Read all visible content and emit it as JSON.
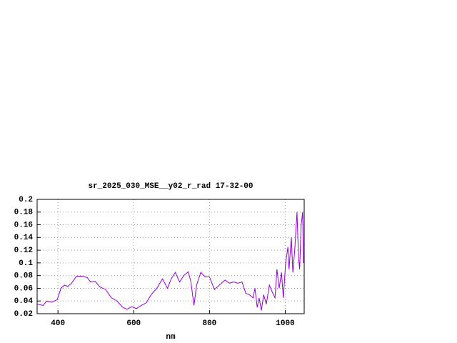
{
  "chart_data": {
    "type": "line",
    "title": "sr_2025_030_MSE__y02_r_rad 17-32-00",
    "x_label": "nm",
    "x": [
      345,
      361,
      370,
      383,
      398,
      408,
      417,
      426,
      436,
      449,
      464,
      477,
      486,
      498,
      511,
      526,
      541,
      556,
      571,
      582,
      595,
      607,
      620,
      633,
      646,
      661,
      676,
      689,
      699,
      710,
      721,
      732,
      744,
      751,
      759,
      766,
      777,
      789,
      800,
      813,
      826,
      841,
      853,
      864,
      875,
      886,
      896,
      905,
      915,
      920,
      926,
      931,
      937,
      943,
      950,
      958,
      965,
      973,
      978,
      984,
      990,
      995,
      1001,
      1007,
      1010,
      1016,
      1020,
      1025,
      1031,
      1035,
      1038,
      1042,
      1046,
      1048
    ],
    "series": [
      {
        "color": "#9400d3",
        "values": [
          0.035,
          0.033,
          0.04,
          0.038,
          0.042,
          0.06,
          0.065,
          0.063,
          0.068,
          0.079,
          0.079,
          0.077,
          0.07,
          0.071,
          0.062,
          0.058,
          0.045,
          0.04,
          0.03,
          0.027,
          0.031,
          0.028,
          0.033,
          0.037,
          0.05,
          0.06,
          0.075,
          0.06,
          0.075,
          0.085,
          0.07,
          0.08,
          0.086,
          0.07,
          0.033,
          0.065,
          0.085,
          0.078,
          0.078,
          0.058,
          0.065,
          0.073,
          0.068,
          0.07,
          0.068,
          0.07,
          0.052,
          0.05,
          0.045,
          0.06,
          0.03,
          0.045,
          0.025,
          0.05,
          0.035,
          0.065,
          0.055,
          0.045,
          0.09,
          0.06,
          0.085,
          0.045,
          0.1,
          0.125,
          0.09,
          0.14,
          0.085,
          0.12,
          0.18,
          0.11,
          0.09,
          0.16,
          0.18,
          0.1
        ]
      }
    ],
    "xlim": [
      345,
      1050
    ],
    "ylim": [
      0.02,
      0.2
    ],
    "xticks": [
      400,
      600,
      800,
      1000
    ],
    "yticks": [
      0.02,
      0.04,
      0.06,
      0.08,
      0.1,
      0.12,
      0.14,
      0.16,
      0.18,
      0.2
    ],
    "grid": true
  }
}
